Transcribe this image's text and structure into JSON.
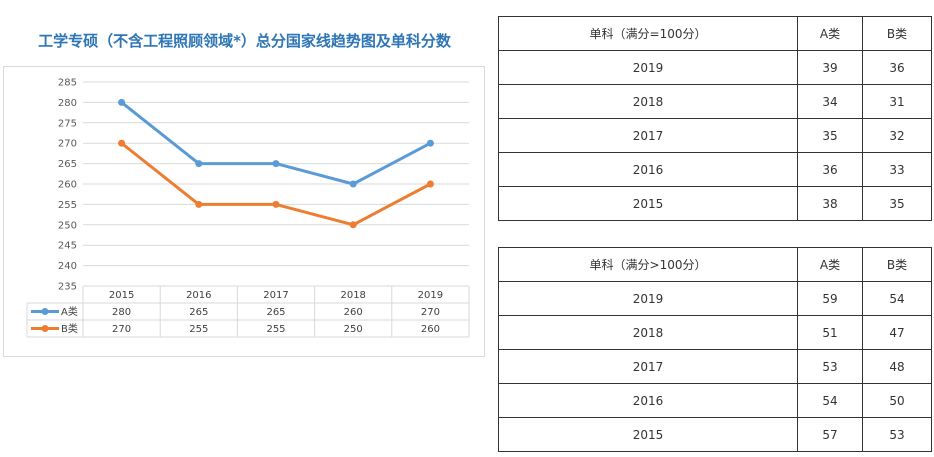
{
  "chart": {
    "title": "工学专硕（不含工程照顾领域*）总分国家线趋势图及单科分数"
  },
  "chart_data": {
    "type": "line",
    "title": "工学专硕（不含工程照顾领域*）总分国家线趋势图及单科分数",
    "categories": [
      "2015",
      "2016",
      "2017",
      "2018",
      "2019"
    ],
    "series": [
      {
        "name": "A类",
        "values": [
          280,
          265,
          265,
          260,
          270
        ],
        "color": "#5b9bd5"
      },
      {
        "name": "B类",
        "values": [
          270,
          255,
          255,
          250,
          260
        ],
        "color": "#ed7d31"
      }
    ],
    "ylim": [
      235,
      285
    ],
    "ystep": 5,
    "grid": true,
    "legend": "data-table-left",
    "data_table": true
  },
  "tables": [
    {
      "header": {
        "label": "单科（满分=100分）",
        "a": "A类",
        "b": "B类"
      },
      "rows": [
        {
          "year": "2019",
          "a": "39",
          "b": "36"
        },
        {
          "year": "2018",
          "a": "34",
          "b": "31"
        },
        {
          "year": "2017",
          "a": "35",
          "b": "32"
        },
        {
          "year": "2016",
          "a": "36",
          "b": "33"
        },
        {
          "year": "2015",
          "a": "38",
          "b": "35"
        }
      ]
    },
    {
      "header": {
        "label": "单科（满分>100分）",
        "a": "A类",
        "b": "B类"
      },
      "rows": [
        {
          "year": "2019",
          "a": "59",
          "b": "54"
        },
        {
          "year": "2018",
          "a": "51",
          "b": "47"
        },
        {
          "year": "2017",
          "a": "53",
          "b": "48"
        },
        {
          "year": "2016",
          "a": "54",
          "b": "50"
        },
        {
          "year": "2015",
          "a": "57",
          "b": "53"
        }
      ]
    }
  ]
}
